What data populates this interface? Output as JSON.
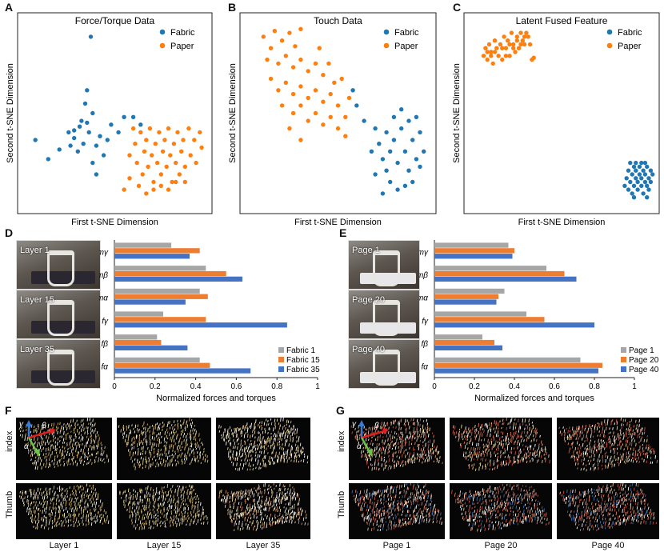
{
  "panel_letters": {
    "A": "A",
    "B": "B",
    "C": "C",
    "D": "D",
    "E": "E",
    "F": "F",
    "G": "G"
  },
  "colors": {
    "fabric": "#1f77b4",
    "paper": "#ff7f0e",
    "bar1": "#a6a6a6",
    "bar2": "#ed7d31",
    "bar3": "#4472c4"
  },
  "chart_data": [
    {
      "id": "A",
      "type": "scatter",
      "title": "Force/Torque Data",
      "xlabel": "First t-SNE Dimension",
      "ylabel": "Second t-SNE Dimension",
      "legend": [
        "Fabric",
        "Paper"
      ],
      "legend_position": "top-right",
      "xlim": [
        0,
        100
      ],
      "ylim": [
        0,
        100
      ],
      "series": [
        {
          "name": "Fabric",
          "points": [
            [
              37,
              90
            ],
            [
              35,
              62
            ],
            [
              7,
              36
            ],
            [
              14,
              26
            ],
            [
              20,
              31
            ],
            [
              25,
              40
            ],
            [
              26,
              33
            ],
            [
              28,
              37
            ],
            [
              30,
              30
            ],
            [
              31,
              43
            ],
            [
              33,
              34
            ],
            [
              35,
              45
            ],
            [
              36,
              40
            ],
            [
              38,
              50
            ],
            [
              34,
              55
            ],
            [
              38,
              24
            ],
            [
              40,
              33
            ],
            [
              42,
              38
            ],
            [
              44,
              28
            ],
            [
              46,
              36
            ],
            [
              48,
              44
            ],
            [
              52,
              40
            ],
            [
              55,
              48
            ],
            [
              60,
              48
            ],
            [
              64,
              44
            ],
            [
              40,
              18
            ],
            [
              28,
              41
            ],
            [
              32,
              46
            ]
          ]
        },
        {
          "name": "Paper",
          "points": [
            [
              58,
              28
            ],
            [
              61,
              34
            ],
            [
              62,
              24
            ],
            [
              64,
              40
            ],
            [
              65,
              18
            ],
            [
              66,
              30
            ],
            [
              67,
              36
            ],
            [
              68,
              22
            ],
            [
              69,
              42
            ],
            [
              70,
              28
            ],
            [
              71,
              14
            ],
            [
              72,
              34
            ],
            [
              73,
              24
            ],
            [
              74,
              40
            ],
            [
              75,
              18
            ],
            [
              76,
              30
            ],
            [
              77,
              36
            ],
            [
              78,
              22
            ],
            [
              79,
              42
            ],
            [
              80,
              28
            ],
            [
              81,
              14
            ],
            [
              82,
              34
            ],
            [
              83,
              24
            ],
            [
              84,
              40
            ],
            [
              85,
              18
            ],
            [
              86,
              30
            ],
            [
              87,
              36
            ],
            [
              88,
              22
            ],
            [
              90,
              42
            ],
            [
              91,
              28
            ],
            [
              93,
              36
            ],
            [
              94,
              24
            ],
            [
              96,
              40
            ],
            [
              55,
              10
            ],
            [
              58,
              16
            ],
            [
              60,
              42
            ],
            [
              63,
              12
            ],
            [
              67,
              8
            ],
            [
              71,
              10
            ],
            [
              75,
              12
            ],
            [
              79,
              10
            ],
            [
              83,
              14
            ],
            [
              88,
              14
            ],
            [
              97,
              32
            ]
          ]
        }
      ]
    },
    {
      "id": "B",
      "type": "scatter",
      "title": "Touch Data",
      "xlabel": "First t-SNE Dimension",
      "ylabel": "Second t-SNE Dimension",
      "legend": [
        "Fabric",
        "Paper"
      ],
      "legend_position": "top-right",
      "xlim": [
        0,
        100
      ],
      "ylim": [
        0,
        100
      ],
      "series": [
        {
          "name": "Paper",
          "points": [
            [
              10,
              90
            ],
            [
              14,
              84
            ],
            [
              16,
              93
            ],
            [
              20,
              88
            ],
            [
              24,
              92
            ],
            [
              27,
              85
            ],
            [
              30,
              94
            ],
            [
              12,
              78
            ],
            [
              18,
              76
            ],
            [
              22,
              80
            ],
            [
              26,
              74
            ],
            [
              30,
              78
            ],
            [
              34,
              72
            ],
            [
              38,
              76
            ],
            [
              40,
              84
            ],
            [
              42,
              70
            ],
            [
              45,
              76
            ],
            [
              48,
              66
            ],
            [
              14,
              68
            ],
            [
              18,
              62
            ],
            [
              22,
              66
            ],
            [
              26,
              60
            ],
            [
              30,
              64
            ],
            [
              34,
              58
            ],
            [
              38,
              62
            ],
            [
              42,
              56
            ],
            [
              46,
              60
            ],
            [
              50,
              54
            ],
            [
              20,
              54
            ],
            [
              26,
              50
            ],
            [
              30,
              54
            ],
            [
              34,
              46
            ],
            [
              38,
              50
            ],
            [
              42,
              44
            ],
            [
              46,
              48
            ],
            [
              50,
              42
            ],
            [
              54,
              48
            ],
            [
              24,
              42
            ],
            [
              30,
              36
            ],
            [
              56,
              58
            ],
            [
              52,
              68
            ],
            [
              54,
              38
            ]
          ]
        },
        {
          "name": "Fabric",
          "points": [
            [
              58,
              62
            ],
            [
              60,
              54
            ],
            [
              64,
              46
            ],
            [
              70,
              42
            ],
            [
              72,
              34
            ],
            [
              74,
              26
            ],
            [
              76,
              20
            ],
            [
              78,
              30
            ],
            [
              80,
              36
            ],
            [
              82,
              24
            ],
            [
              84,
              42
            ],
            [
              86,
              30
            ],
            [
              88,
              20
            ],
            [
              90,
              36
            ],
            [
              92,
              26
            ],
            [
              94,
              40
            ],
            [
              78,
              14
            ],
            [
              82,
              10
            ],
            [
              86,
              12
            ],
            [
              90,
              14
            ],
            [
              94,
              22
            ],
            [
              70,
              18
            ],
            [
              74,
              8
            ],
            [
              80,
              48
            ],
            [
              84,
              52
            ],
            [
              88,
              46
            ],
            [
              92,
              48
            ],
            [
              96,
              30
            ],
            [
              76,
              40
            ],
            [
              68,
              30
            ]
          ]
        }
      ]
    },
    {
      "id": "C",
      "type": "scatter",
      "title": "Latent Fused Feature",
      "xlabel": "First t-SNE Dimension",
      "ylabel": "Second t-SNE Dimension",
      "legend": [
        "Fabric",
        "Paper"
      ],
      "legend_position": "top-right",
      "xlim": [
        0,
        100
      ],
      "ylim": [
        0,
        100
      ],
      "series": [
        {
          "name": "Paper",
          "points": [
            [
              8,
              80
            ],
            [
              9,
              84
            ],
            [
              10,
              78
            ],
            [
              11,
              86
            ],
            [
              12,
              82
            ],
            [
              13,
              76
            ],
            [
              14,
              88
            ],
            [
              15,
              84
            ],
            [
              16,
              80
            ],
            [
              17,
              86
            ],
            [
              18,
              78
            ],
            [
              19,
              90
            ],
            [
              20,
              84
            ],
            [
              21,
              88
            ],
            [
              22,
              80
            ],
            [
              23,
              92
            ],
            [
              24,
              86
            ],
            [
              25,
              82
            ],
            [
              26,
              90
            ],
            [
              27,
              84
            ],
            [
              28,
              92
            ],
            [
              29,
              88
            ],
            [
              30,
              86
            ],
            [
              31,
              92
            ],
            [
              32,
              90
            ],
            [
              33,
              86
            ],
            [
              18,
              84
            ],
            [
              22,
              86
            ],
            [
              26,
              88
            ],
            [
              12,
              80
            ],
            [
              14,
              82
            ],
            [
              34,
              78
            ],
            [
              35,
              79
            ],
            [
              10,
              82
            ],
            [
              20,
              80
            ],
            [
              24,
              84
            ],
            [
              28,
              86
            ],
            [
              30,
              90
            ]
          ]
        },
        {
          "name": "Fabric",
          "points": [
            [
              84,
              12
            ],
            [
              85,
              16
            ],
            [
              86,
              10
            ],
            [
              86,
              20
            ],
            [
              87,
              14
            ],
            [
              88,
              18
            ],
            [
              88,
              8
            ],
            [
              89,
              22
            ],
            [
              89,
              12
            ],
            [
              90,
              16
            ],
            [
              90,
              20
            ],
            [
              91,
              10
            ],
            [
              91,
              14
            ],
            [
              92,
              18
            ],
            [
              92,
              22
            ],
            [
              93,
              12
            ],
            [
              93,
              16
            ],
            [
              94,
              20
            ],
            [
              94,
              8
            ],
            [
              95,
              14
            ],
            [
              95,
              18
            ],
            [
              96,
              12
            ],
            [
              96,
              22
            ],
            [
              97,
              16
            ],
            [
              97,
              10
            ],
            [
              98,
              14
            ],
            [
              98,
              20
            ],
            [
              99,
              18
            ],
            [
              87,
              24
            ],
            [
              90,
              24
            ],
            [
              93,
              24
            ],
            [
              95,
              24
            ],
            [
              96,
              6
            ],
            [
              89,
              6
            ]
          ]
        }
      ]
    },
    {
      "id": "D",
      "type": "bar",
      "orientation": "horizontal",
      "xlabel": "Normalized forces and torques",
      "xlim": [
        0,
        1
      ],
      "xticks": [
        "0",
        "0.2",
        "0.4",
        "0.6",
        "0.8",
        "1"
      ],
      "categories": [
        "mγ",
        "mβ",
        "mα",
        "fγ",
        "fβ",
        "fα"
      ],
      "legend_position": "bottom-right",
      "series": [
        {
          "name": "Fabric 1",
          "values": [
            0.28,
            0.45,
            0.42,
            0.24,
            0.21,
            0.42
          ]
        },
        {
          "name": "Fabric 15",
          "values": [
            0.42,
            0.55,
            0.46,
            0.45,
            0.23,
            0.47
          ]
        },
        {
          "name": "Fabric 35",
          "values": [
            0.37,
            0.63,
            0.35,
            0.85,
            0.36,
            0.67
          ]
        }
      ]
    },
    {
      "id": "E",
      "type": "bar",
      "orientation": "horizontal",
      "xlabel": "Normalized forces and torques",
      "xlim": [
        0,
        1
      ],
      "xticks": [
        "0",
        "0.2",
        "0.4",
        "0.6",
        "0.8",
        "1"
      ],
      "categories": [
        "mγ",
        "mβ",
        "mα",
        "fγ",
        "fβ",
        "fα"
      ],
      "legend_position": "bottom-right",
      "series": [
        {
          "name": "Page 1",
          "values": [
            0.37,
            0.56,
            0.35,
            0.46,
            0.24,
            0.73
          ]
        },
        {
          "name": "Page 20",
          "values": [
            0.4,
            0.65,
            0.32,
            0.55,
            0.3,
            0.84
          ]
        },
        {
          "name": "Page 40",
          "values": [
            0.39,
            0.71,
            0.31,
            0.8,
            0.34,
            0.82
          ]
        }
      ]
    }
  ],
  "photos_D": [
    "Layer 1",
    "Layer 15",
    "Layer 35"
  ],
  "photos_E": [
    "Page 1",
    "Page 20",
    "Page 40"
  ],
  "panel_F": {
    "rows": [
      "index",
      "Thumb"
    ],
    "cols": [
      "Layer 1",
      "Layer 15",
      "Layer 35"
    ],
    "axes": {
      "a": "α",
      "b": "β",
      "g": "γ"
    }
  },
  "panel_G": {
    "rows": [
      "index",
      "Thumb"
    ],
    "cols": [
      "Page 1",
      "Page 20",
      "Page 40"
    ],
    "axes": {
      "a": "α",
      "b": "β",
      "g": "γ"
    }
  }
}
